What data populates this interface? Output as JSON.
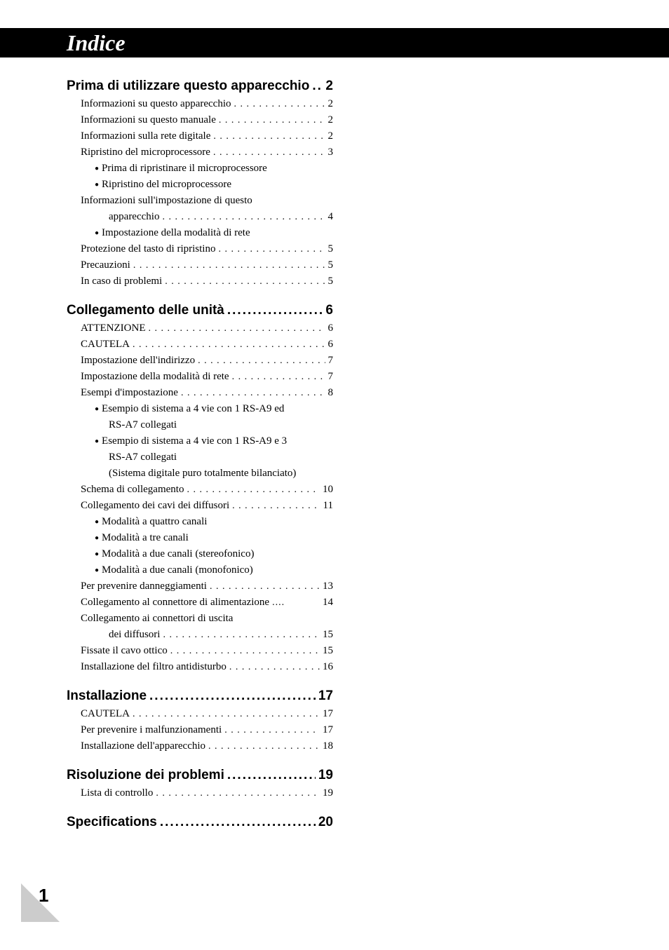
{
  "title": "Indice",
  "page_number": "1",
  "colors": {
    "titlebar_bg": "#000000",
    "titlebar_text": "#ffffff",
    "page_bg": "#ffffff",
    "text": "#000000"
  },
  "typography": {
    "title_fontsize": 32,
    "title_style": "italic bold",
    "section_fontsize": 19,
    "entry_fontsize": 15,
    "pagenum_fontsize": 26
  },
  "sections": [
    {
      "heading": "Prima di utilizzare questo apparecchio",
      "heading_dots": "....",
      "heading_page": "2",
      "entries": [
        {
          "type": "entry",
          "label": "Informazioni su questo apparecchio",
          "page": "2",
          "indent": 1
        },
        {
          "type": "entry",
          "label": "Informazioni su questo manuale",
          "page": "2",
          "indent": 1
        },
        {
          "type": "entry",
          "label": "Informazioni sulla rete digitale",
          "page": "2",
          "indent": 1
        },
        {
          "type": "entry",
          "label": "Ripristino del microprocessore",
          "page": "3",
          "indent": 1
        },
        {
          "type": "bullet",
          "label": "Prima di ripristinare il microprocessore"
        },
        {
          "type": "bullet",
          "label": "Ripristino del microprocessore"
        },
        {
          "type": "text",
          "label": "Informazioni sull'impostazione di questo",
          "indent": 1
        },
        {
          "type": "entry",
          "label": "apparecchio",
          "page": "4",
          "indent": 3
        },
        {
          "type": "bullet",
          "label": "Impostazione della modalità di rete"
        },
        {
          "type": "entry",
          "label": "Protezione del tasto di ripristino",
          "page": "5",
          "indent": 1
        },
        {
          "type": "entry",
          "label": "Precauzioni",
          "page": "5",
          "indent": 1
        },
        {
          "type": "entry",
          "label": "In caso di problemi",
          "page": "5",
          "indent": 1
        }
      ]
    },
    {
      "heading": "Collegamento delle unità",
      "heading_dots": "........................",
      "heading_page": "6",
      "entries": [
        {
          "type": "entry",
          "label": "ATTENZIONE",
          "page": "6",
          "indent": 1
        },
        {
          "type": "entry",
          "label": "CAUTELA",
          "page": "6",
          "indent": 1
        },
        {
          "type": "entry",
          "label": "Impostazione dell'indirizzo",
          "page": "7",
          "indent": 1
        },
        {
          "type": "entry",
          "label": "Impostazione della modalità di rete",
          "page": "7",
          "indent": 1
        },
        {
          "type": "entry",
          "label": "Esempi d'impostazione",
          "page": "8",
          "indent": 1
        },
        {
          "type": "bullet",
          "label": "Esempio di sistema a 4 vie con 1 RS-A9 ed"
        },
        {
          "type": "sub",
          "label": "RS-A7 collegati"
        },
        {
          "type": "bullet",
          "label": "Esempio di sistema a 4 vie con 1 RS-A9 e 3"
        },
        {
          "type": "sub",
          "label": "RS-A7 collegati"
        },
        {
          "type": "sub",
          "label": "(Sistema digitale puro totalmente bilanciato)"
        },
        {
          "type": "entry",
          "label": "Schema di collegamento",
          "page": "10",
          "indent": 1
        },
        {
          "type": "entry",
          "label": "Collegamento dei cavi dei diffusori",
          "page": "11",
          "indent": 1
        },
        {
          "type": "bullet",
          "label": "Modalità a quattro canali"
        },
        {
          "type": "bullet",
          "label": "Modalità a tre canali"
        },
        {
          "type": "bullet",
          "label": "Modalità a due canali (stereofonico)"
        },
        {
          "type": "bullet",
          "label": "Modalità a due canali (monofonico)"
        },
        {
          "type": "entry",
          "label": "Per prevenire danneggiamenti",
          "page": "13",
          "indent": 1
        },
        {
          "type": "entry",
          "label": "Collegamento al connettore di alimentazione",
          "page": "14",
          "indent": 1,
          "dots": "...."
        },
        {
          "type": "text",
          "label": "Collegamento ai connettori di uscita",
          "indent": 1
        },
        {
          "type": "entry",
          "label": "dei diffusori",
          "page": "15",
          "indent": 3
        },
        {
          "type": "entry",
          "label": "Fissate il cavo ottico",
          "page": "15",
          "indent": 1
        },
        {
          "type": "entry",
          "label": "Installazione del filtro antidisturbo",
          "page": "16",
          "indent": 1
        }
      ]
    },
    {
      "heading": "Installazione",
      "heading_dots": "...........................................",
      "heading_page": "17",
      "entries": [
        {
          "type": "entry",
          "label": "CAUTELA",
          "page": "17",
          "indent": 1
        },
        {
          "type": "entry",
          "label": "Per prevenire i malfunzionamenti",
          "page": "17",
          "indent": 1
        },
        {
          "type": "entry",
          "label": "Installazione dell'apparecchio",
          "page": "18",
          "indent": 1
        }
      ]
    },
    {
      "heading": "Risoluzione dei problemi",
      "heading_dots": "........................",
      "heading_page": "19",
      "entries": [
        {
          "type": "entry",
          "label": "Lista di controllo",
          "page": "19",
          "indent": 1
        }
      ]
    },
    {
      "heading": "Specifications",
      "heading_dots": ".........................................",
      "heading_page": "20",
      "entries": []
    }
  ]
}
